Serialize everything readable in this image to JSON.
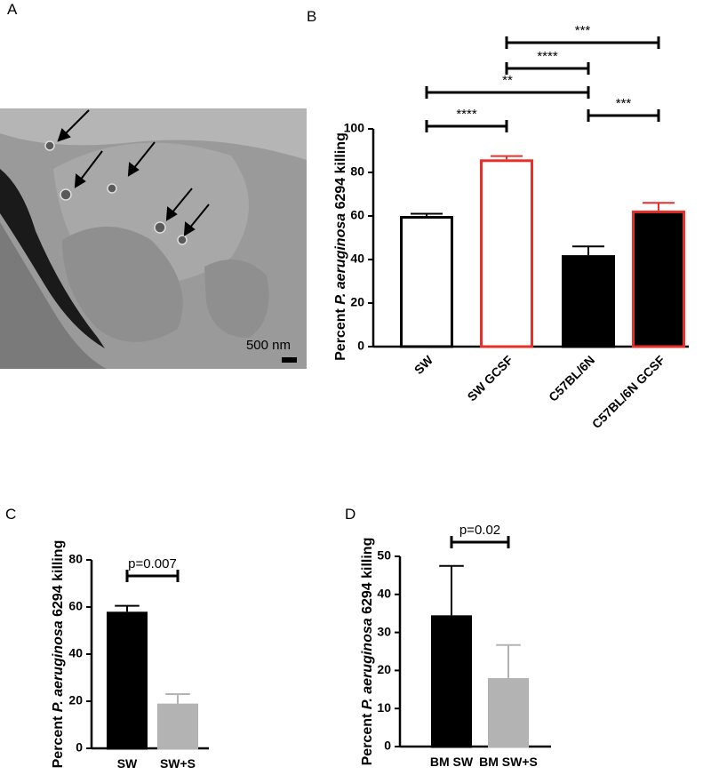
{
  "panel_labels": [
    "A",
    "B",
    "C",
    "D"
  ],
  "micrograph": {
    "scale_bar": "500 nm"
  },
  "chart_data": [
    {
      "type": "bar",
      "y_label": {
        "prefix": "Percent ",
        "italic": "P. aeruginosa",
        "suffix": " 6294 killing"
      },
      "categories": [
        "SW",
        "SW GCSF",
        "C57BL/6N",
        "C57BL/6N GCSF"
      ],
      "values": [
        60,
        86,
        42,
        62.5
      ],
      "errors": [
        1,
        1.5,
        4,
        3.5
      ],
      "fills": [
        "#ffffff",
        "#ffffff",
        "#000000",
        "#000000"
      ],
      "edges": [
        "#000000",
        "#e8302a",
        "#000000",
        "#e8302a"
      ],
      "ylim": [
        0,
        100
      ],
      "yticks": [
        0,
        20,
        40,
        60,
        80,
        100
      ],
      "significance": [
        {
          "from": 0,
          "to": 1,
          "label": "****"
        },
        {
          "from": 2,
          "to": 3,
          "label": "***"
        },
        {
          "from": 0,
          "to": 2,
          "label": "**"
        },
        {
          "from": 1,
          "to": 2,
          "label": "****"
        },
        {
          "from": 1,
          "to": 3,
          "label": "***"
        }
      ]
    },
    {
      "type": "bar",
      "y_label": {
        "prefix": "Percent ",
        "italic": "P. aeruginosa",
        "suffix": " 6294 killing"
      },
      "categories": [
        "SW",
        "SW+S"
      ],
      "values": [
        58,
        19
      ],
      "errors": [
        2.5,
        4
      ],
      "fills": [
        "#000000",
        "#b3b3b3"
      ],
      "edges": [
        "#000000",
        "#b3b3b3"
      ],
      "ylim": [
        0,
        80
      ],
      "yticks": [
        0,
        20,
        40,
        60,
        80
      ],
      "significance": [
        {
          "from": 0,
          "to": 1,
          "label": "p=0.007"
        }
      ]
    },
    {
      "type": "bar",
      "y_label": {
        "prefix": "Percent ",
        "italic": "P. aeruginosa",
        "suffix": " 6294 killing"
      },
      "categories": [
        "BM SW",
        "BM SW+S"
      ],
      "values": [
        34.5,
        18
      ],
      "errors": [
        13,
        8.7
      ],
      "fills": [
        "#000000",
        "#b3b3b3"
      ],
      "edges": [
        "#000000",
        "#b3b3b3"
      ],
      "ylim": [
        0,
        50
      ],
      "yticks": [
        0,
        10,
        20,
        30,
        40,
        50
      ],
      "significance": [
        {
          "from": 0,
          "to": 1,
          "label": "p=0.02"
        }
      ]
    }
  ]
}
